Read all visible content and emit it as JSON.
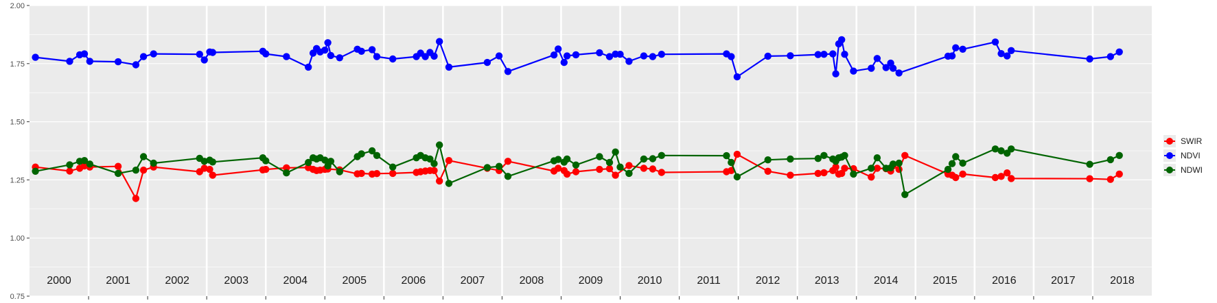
{
  "chart_data": {
    "type": "line",
    "title": "",
    "xlabel": "",
    "ylabel": "",
    "xlim": [
      2000.0,
      2019.0
    ],
    "ylim": [
      0.75,
      2.0
    ],
    "y_ticks": [
      "0.75",
      "1.00",
      "1.25",
      "1.50",
      "1.75",
      "2.00"
    ],
    "x_period_labels": [
      "2000",
      "2001",
      "2002",
      "2003",
      "2004",
      "2005",
      "2006",
      "2007",
      "2008",
      "2009",
      "2010",
      "2011",
      "2012",
      "2013",
      "2014",
      "2015",
      "2016",
      "2017",
      "2018"
    ],
    "grid": true,
    "legend_position": "right",
    "series": [
      {
        "name": "SWIR",
        "color": "#ff0000",
        "points": [
          [
            2000.1,
            1.305
          ],
          [
            2000.68,
            1.288
          ],
          [
            2000.85,
            1.3
          ],
          [
            2000.93,
            1.31
          ],
          [
            2001.02,
            1.305
          ],
          [
            2001.5,
            1.308
          ],
          [
            2001.8,
            1.17
          ],
          [
            2001.93,
            1.292
          ],
          [
            2002.1,
            1.305
          ],
          [
            2002.88,
            1.285
          ],
          [
            2002.96,
            1.3
          ],
          [
            2003.05,
            1.295
          ],
          [
            2003.1,
            1.27
          ],
          [
            2003.95,
            1.293
          ],
          [
            2004.0,
            1.295
          ],
          [
            2004.35,
            1.302
          ],
          [
            2004.72,
            1.303
          ],
          [
            2004.8,
            1.295
          ],
          [
            2004.86,
            1.29
          ],
          [
            2004.92,
            1.292
          ],
          [
            2005.0,
            1.295
          ],
          [
            2005.05,
            1.297
          ],
          [
            2005.25,
            1.293
          ],
          [
            2005.55,
            1.276
          ],
          [
            2005.62,
            1.278
          ],
          [
            2005.8,
            1.275
          ],
          [
            2005.88,
            1.277
          ],
          [
            2006.15,
            1.278
          ],
          [
            2006.55,
            1.282
          ],
          [
            2006.62,
            1.285
          ],
          [
            2006.7,
            1.288
          ],
          [
            2006.78,
            1.29
          ],
          [
            2006.85,
            1.29
          ],
          [
            2006.94,
            1.245
          ],
          [
            2007.1,
            1.333
          ],
          [
            2007.75,
            1.3
          ],
          [
            2007.95,
            1.29
          ],
          [
            2008.1,
            1.33
          ],
          [
            2008.88,
            1.288
          ],
          [
            2008.95,
            1.3
          ],
          [
            2009.05,
            1.29
          ],
          [
            2009.1,
            1.275
          ],
          [
            2009.25,
            1.285
          ],
          [
            2009.65,
            1.295
          ],
          [
            2009.82,
            1.298
          ],
          [
            2009.92,
            1.27
          ],
          [
            2010.15,
            1.312
          ],
          [
            2010.4,
            1.3
          ],
          [
            2010.55,
            1.297
          ],
          [
            2010.7,
            1.282
          ],
          [
            2011.8,
            1.285
          ],
          [
            2011.88,
            1.29
          ],
          [
            2011.98,
            1.36
          ],
          [
            2012.5,
            1.287
          ],
          [
            2012.88,
            1.27
          ],
          [
            2013.35,
            1.278
          ],
          [
            2013.45,
            1.281
          ],
          [
            2013.6,
            1.29
          ],
          [
            2013.65,
            1.305
          ],
          [
            2013.7,
            1.275
          ],
          [
            2013.75,
            1.278
          ],
          [
            2013.8,
            1.3
          ],
          [
            2013.95,
            1.298
          ],
          [
            2014.25,
            1.262
          ],
          [
            2014.35,
            1.3
          ],
          [
            2014.5,
            1.298
          ],
          [
            2014.58,
            1.288
          ],
          [
            2014.62,
            1.31
          ],
          [
            2014.72,
            1.295
          ],
          [
            2014.82,
            1.355
          ],
          [
            2015.55,
            1.275
          ],
          [
            2015.62,
            1.27
          ],
          [
            2015.68,
            1.26
          ],
          [
            2015.8,
            1.275
          ],
          [
            2016.35,
            1.26
          ],
          [
            2016.45,
            1.265
          ],
          [
            2016.55,
            1.28
          ],
          [
            2016.62,
            1.256
          ],
          [
            2017.95,
            1.255
          ],
          [
            2018.3,
            1.252
          ],
          [
            2018.45,
            1.275
          ]
        ]
      },
      {
        "name": "NDVI",
        "color": "#0000ff",
        "points": [
          [
            2000.1,
            1.777
          ],
          [
            2000.68,
            1.76
          ],
          [
            2000.85,
            1.788
          ],
          [
            2000.93,
            1.792
          ],
          [
            2001.02,
            1.76
          ],
          [
            2001.5,
            1.758
          ],
          [
            2001.8,
            1.745
          ],
          [
            2001.93,
            1.78
          ],
          [
            2002.1,
            1.792
          ],
          [
            2002.88,
            1.79
          ],
          [
            2002.96,
            1.766
          ],
          [
            2003.05,
            1.8
          ],
          [
            2003.1,
            1.798
          ],
          [
            2003.95,
            1.803
          ],
          [
            2004.0,
            1.792
          ],
          [
            2004.35,
            1.78
          ],
          [
            2004.72,
            1.735
          ],
          [
            2004.8,
            1.795
          ],
          [
            2004.86,
            1.815
          ],
          [
            2004.92,
            1.8
          ],
          [
            2005.0,
            1.808
          ],
          [
            2005.05,
            1.84
          ],
          [
            2005.1,
            1.785
          ],
          [
            2005.25,
            1.775
          ],
          [
            2005.55,
            1.812
          ],
          [
            2005.62,
            1.803
          ],
          [
            2005.8,
            1.81
          ],
          [
            2005.88,
            1.78
          ],
          [
            2006.15,
            1.77
          ],
          [
            2006.55,
            1.78
          ],
          [
            2006.62,
            1.795
          ],
          [
            2006.7,
            1.78
          ],
          [
            2006.78,
            1.798
          ],
          [
            2006.85,
            1.782
          ],
          [
            2006.94,
            1.845
          ],
          [
            2007.1,
            1.735
          ],
          [
            2007.75,
            1.755
          ],
          [
            2007.95,
            1.783
          ],
          [
            2008.1,
            1.716
          ],
          [
            2008.88,
            1.787
          ],
          [
            2008.95,
            1.813
          ],
          [
            2009.05,
            1.755
          ],
          [
            2009.1,
            1.783
          ],
          [
            2009.25,
            1.788
          ],
          [
            2009.65,
            1.797
          ],
          [
            2009.82,
            1.78
          ],
          [
            2009.92,
            1.791
          ],
          [
            2010.0,
            1.79
          ],
          [
            2010.15,
            1.76
          ],
          [
            2010.4,
            1.783
          ],
          [
            2010.55,
            1.78
          ],
          [
            2010.7,
            1.79
          ],
          [
            2011.8,
            1.792
          ],
          [
            2011.88,
            1.78
          ],
          [
            2011.98,
            1.693
          ],
          [
            2012.5,
            1.782
          ],
          [
            2012.88,
            1.784
          ],
          [
            2013.35,
            1.789
          ],
          [
            2013.45,
            1.79
          ],
          [
            2013.6,
            1.792
          ],
          [
            2013.65,
            1.706
          ],
          [
            2013.7,
            1.835
          ],
          [
            2013.75,
            1.853
          ],
          [
            2013.8,
            1.79
          ],
          [
            2013.95,
            1.718
          ],
          [
            2014.25,
            1.73
          ],
          [
            2014.35,
            1.772
          ],
          [
            2014.5,
            1.733
          ],
          [
            2014.58,
            1.752
          ],
          [
            2014.62,
            1.73
          ],
          [
            2014.72,
            1.71
          ],
          [
            2015.55,
            1.782
          ],
          [
            2015.62,
            1.783
          ],
          [
            2015.68,
            1.818
          ],
          [
            2015.8,
            1.812
          ],
          [
            2016.35,
            1.843
          ],
          [
            2016.45,
            1.793
          ],
          [
            2016.55,
            1.783
          ],
          [
            2016.62,
            1.806
          ],
          [
            2017.95,
            1.77
          ],
          [
            2018.3,
            1.78
          ],
          [
            2018.45,
            1.8
          ]
        ]
      },
      {
        "name": "NDWI",
        "color": "#006400",
        "points": [
          [
            2000.1,
            1.287
          ],
          [
            2000.68,
            1.315
          ],
          [
            2000.85,
            1.33
          ],
          [
            2000.93,
            1.333
          ],
          [
            2001.02,
            1.318
          ],
          [
            2001.5,
            1.278
          ],
          [
            2001.8,
            1.292
          ],
          [
            2001.93,
            1.35
          ],
          [
            2002.1,
            1.322
          ],
          [
            2002.88,
            1.343
          ],
          [
            2002.96,
            1.33
          ],
          [
            2003.05,
            1.335
          ],
          [
            2003.1,
            1.327
          ],
          [
            2003.95,
            1.345
          ],
          [
            2004.0,
            1.332
          ],
          [
            2004.35,
            1.28
          ],
          [
            2004.72,
            1.325
          ],
          [
            2004.8,
            1.345
          ],
          [
            2004.86,
            1.34
          ],
          [
            2004.92,
            1.345
          ],
          [
            2005.0,
            1.335
          ],
          [
            2005.05,
            1.31
          ],
          [
            2005.1,
            1.33
          ],
          [
            2005.25,
            1.285
          ],
          [
            2005.55,
            1.35
          ],
          [
            2005.62,
            1.362
          ],
          [
            2005.8,
            1.375
          ],
          [
            2005.88,
            1.355
          ],
          [
            2006.15,
            1.305
          ],
          [
            2006.55,
            1.345
          ],
          [
            2006.62,
            1.355
          ],
          [
            2006.7,
            1.345
          ],
          [
            2006.78,
            1.34
          ],
          [
            2006.85,
            1.32
          ],
          [
            2006.94,
            1.4
          ],
          [
            2007.1,
            1.235
          ],
          [
            2007.75,
            1.303
          ],
          [
            2007.95,
            1.308
          ],
          [
            2008.1,
            1.265
          ],
          [
            2008.88,
            1.332
          ],
          [
            2008.95,
            1.338
          ],
          [
            2009.05,
            1.326
          ],
          [
            2009.1,
            1.34
          ],
          [
            2009.25,
            1.314
          ],
          [
            2009.65,
            1.35
          ],
          [
            2009.82,
            1.325
          ],
          [
            2009.92,
            1.37
          ],
          [
            2010.0,
            1.305
          ],
          [
            2010.15,
            1.278
          ],
          [
            2010.4,
            1.34
          ],
          [
            2010.55,
            1.341
          ],
          [
            2010.7,
            1.355
          ],
          [
            2011.8,
            1.354
          ],
          [
            2011.88,
            1.325
          ],
          [
            2011.98,
            1.263
          ],
          [
            2012.5,
            1.336
          ],
          [
            2012.88,
            1.34
          ],
          [
            2013.35,
            1.342
          ],
          [
            2013.45,
            1.355
          ],
          [
            2013.6,
            1.34
          ],
          [
            2013.65,
            1.33
          ],
          [
            2013.7,
            1.345
          ],
          [
            2013.75,
            1.348
          ],
          [
            2013.8,
            1.355
          ],
          [
            2013.95,
            1.275
          ],
          [
            2014.25,
            1.3
          ],
          [
            2014.35,
            1.345
          ],
          [
            2014.5,
            1.3
          ],
          [
            2014.58,
            1.302
          ],
          [
            2014.62,
            1.318
          ],
          [
            2014.72,
            1.322
          ],
          [
            2014.82,
            1.187
          ],
          [
            2015.55,
            1.295
          ],
          [
            2015.62,
            1.32
          ],
          [
            2015.68,
            1.35
          ],
          [
            2015.8,
            1.322
          ],
          [
            2016.35,
            1.383
          ],
          [
            2016.45,
            1.375
          ],
          [
            2016.55,
            1.365
          ],
          [
            2016.62,
            1.383
          ],
          [
            2017.95,
            1.317
          ],
          [
            2018.3,
            1.337
          ],
          [
            2018.45,
            1.355
          ]
        ]
      }
    ]
  }
}
